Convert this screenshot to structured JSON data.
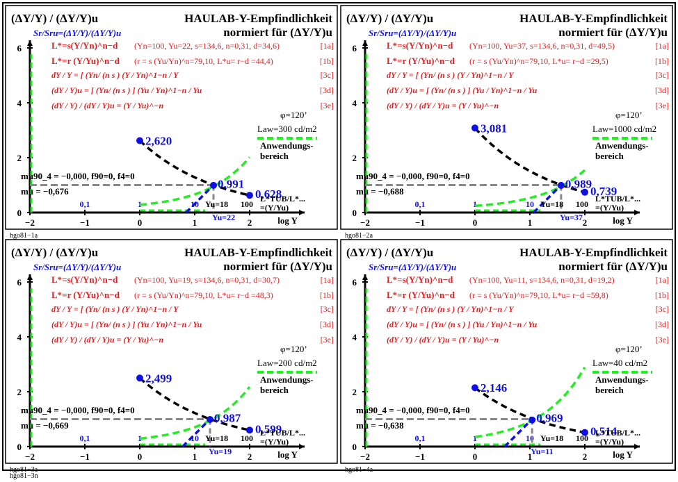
{
  "common": {
    "title_left": "(ΔY/Y) / (ΔY/Y)u",
    "title_right_1": "HAULAB-Y-Empfindlichkeit",
    "title_right_2": "normiert für (ΔY/Y)u",
    "subtitle": "Sr/Sru=(ΔY/Y)/(ΔY/Y)u",
    "eq1_label": "L*=s(Y/Yn)^n−d",
    "eq1_tag": "[1a]",
    "eq2_label": "L*=r (Y/Yu)^n−d",
    "eq2_tag": "[1b]",
    "eq3": "dY / Y = [ (Yn/ (n s ) (Y / Yn)^1−n / Y",
    "eq3_tag": "[3c]",
    "eq4": "(dY / Y)u = [ (Yn/ (n s ) ] (Yu / Yn)^1−n / Yu",
    "eq4_tag": "[3d]",
    "eq5": "(dY / Y) / (dY / Y)u = (Y / Yu)^−n",
    "eq5_tag": "[3e]",
    "phi": "φ=120’",
    "anw1": "Anwendungs-",
    "anw2": "bereich",
    "m90_text": "mu90_4 = −0,000, f90=0, f4=0",
    "xlabel": "log Y",
    "ltub": "L*TUB/L*...",
    "ltub2": "=(Y/Yu)",
    "yu_label": "Yu=18",
    "y_ticks": [
      "0",
      "2",
      "4",
      "6"
    ],
    "x_ticks": [
      "−2",
      "−1",
      "0",
      "1",
      "2"
    ],
    "y_lin_ticks": [
      "0,1",
      "1",
      "10",
      "100"
    ]
  },
  "panels": [
    {
      "yn_eq1": "(Yn=100, Yu=22, s=134,6, n=0,31, d=34,6)",
      "eq2_params": "(r = s (Yu/Yn)^n=79,10, L*u= r−d =44,4)",
      "law": "Law=300 cd/m2",
      "mu": "mu = −0,676",
      "yu_marker": "Yu=22",
      "val_start": "2,620",
      "val_mid": "0,991",
      "val_end": "0,628",
      "code": "hgo81−1a"
    },
    {
      "yn_eq1": "(Yn=100, Yu=37, s=134,6, n=0,31, d=49,5)",
      "eq2_params": "(r = s (Yu/Yn)^n=79,10, L*u= r−d =29,5)",
      "law": "Law=1000 cd/m2",
      "mu": "mu = −0,688",
      "yu_marker": "Yu=37",
      "val_start": "3,081",
      "val_mid": "0,989",
      "val_end": "0,739",
      "code": "hgo81−2a"
    },
    {
      "yn_eq1": "(Yn=100, Yu=19, s=134,6, n=0,31, d=30,7)",
      "eq2_params": "(r = s (Yu/Yn)^n=79,10, L*u= r−d =48,3)",
      "law": "Law=200 cd/m2",
      "mu": "mu = −0,669",
      "yu_marker": "Yu=19",
      "val_start": "2,499",
      "val_mid": "0,987",
      "val_end": "0,599",
      "code": "hgo81−3a"
    },
    {
      "yn_eq1": "(Yn=100, Yu=11, s=134,6, n=0,31, d=19,2)",
      "eq2_params": "(r = s (Yu/Yn)^n=79,10, L*u= r−d =59,8)",
      "law": "Law=40 cd/m2",
      "mu": "mu = −0,638",
      "yu_marker": "Yu=11",
      "val_start": "2,146",
      "val_mid": "0,969",
      "val_end": "0,514",
      "code": "hgo81−4a"
    }
  ],
  "footer": "hgo81−3n",
  "colors": {
    "red": "#e02020",
    "blue": "#1010e0",
    "green": "#22ee22",
    "gray": "#888888",
    "black": "#000000"
  },
  "chart_data": [
    {
      "type": "line",
      "xlabel": "log Y",
      "xlim": [
        -2,
        2.4
      ],
      "ylim": [
        0,
        6.4
      ],
      "series": [
        {
          "x": [
            0,
            1.342,
            2
          ],
          "values": [
            2.62,
            0.991,
            0.628
          ]
        }
      ],
      "log_yu": 1.342
    },
    {
      "type": "line",
      "xlabel": "log Y",
      "xlim": [
        -2,
        2.4
      ],
      "ylim": [
        0,
        6.4
      ],
      "series": [
        {
          "x": [
            0,
            1.568,
            2
          ],
          "values": [
            3.081,
            0.989,
            0.739
          ]
        }
      ],
      "log_yu": 1.568
    },
    {
      "type": "line",
      "xlabel": "log Y",
      "xlim": [
        -2,
        2.4
      ],
      "ylim": [
        0,
        6.4
      ],
      "series": [
        {
          "x": [
            0,
            1.279,
            2
          ],
          "values": [
            2.499,
            0.987,
            0.599
          ]
        }
      ],
      "log_yu": 1.279
    },
    {
      "type": "line",
      "xlabel": "log Y",
      "xlim": [
        -2,
        2.4
      ],
      "ylim": [
        0,
        6.4
      ],
      "series": [
        {
          "x": [
            0,
            1.041,
            2
          ],
          "values": [
            2.146,
            0.969,
            0.514
          ]
        }
      ],
      "log_yu": 1.041
    }
  ]
}
